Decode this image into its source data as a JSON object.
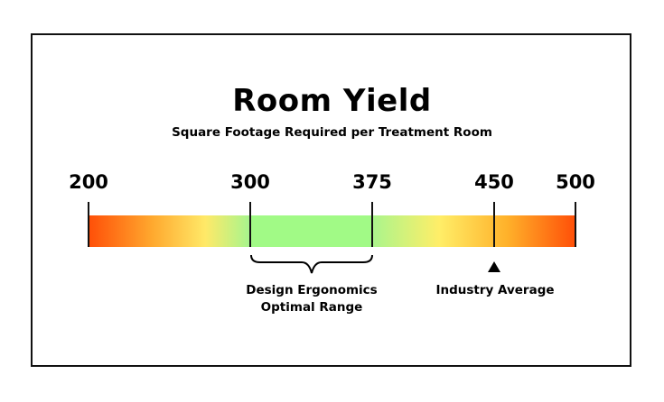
{
  "title": "Room Yield",
  "subtitle": "Square Footage Required per Treatment Room",
  "scale": {
    "min": 200,
    "max": 500,
    "ticks": [
      "200",
      "300",
      "375",
      "450",
      "500"
    ]
  },
  "optimal_range": {
    "start": 300,
    "end": 375,
    "label_line1": "Design Ergonomics",
    "label_line2": "Optimal Range",
    "color": "#a1fa86"
  },
  "industry_average": {
    "value": 450,
    "label": "Industry Average"
  },
  "colors": {
    "low_end": "#ff4f08",
    "middle": "#a8f58d",
    "high_end": "#ff4f08"
  }
}
